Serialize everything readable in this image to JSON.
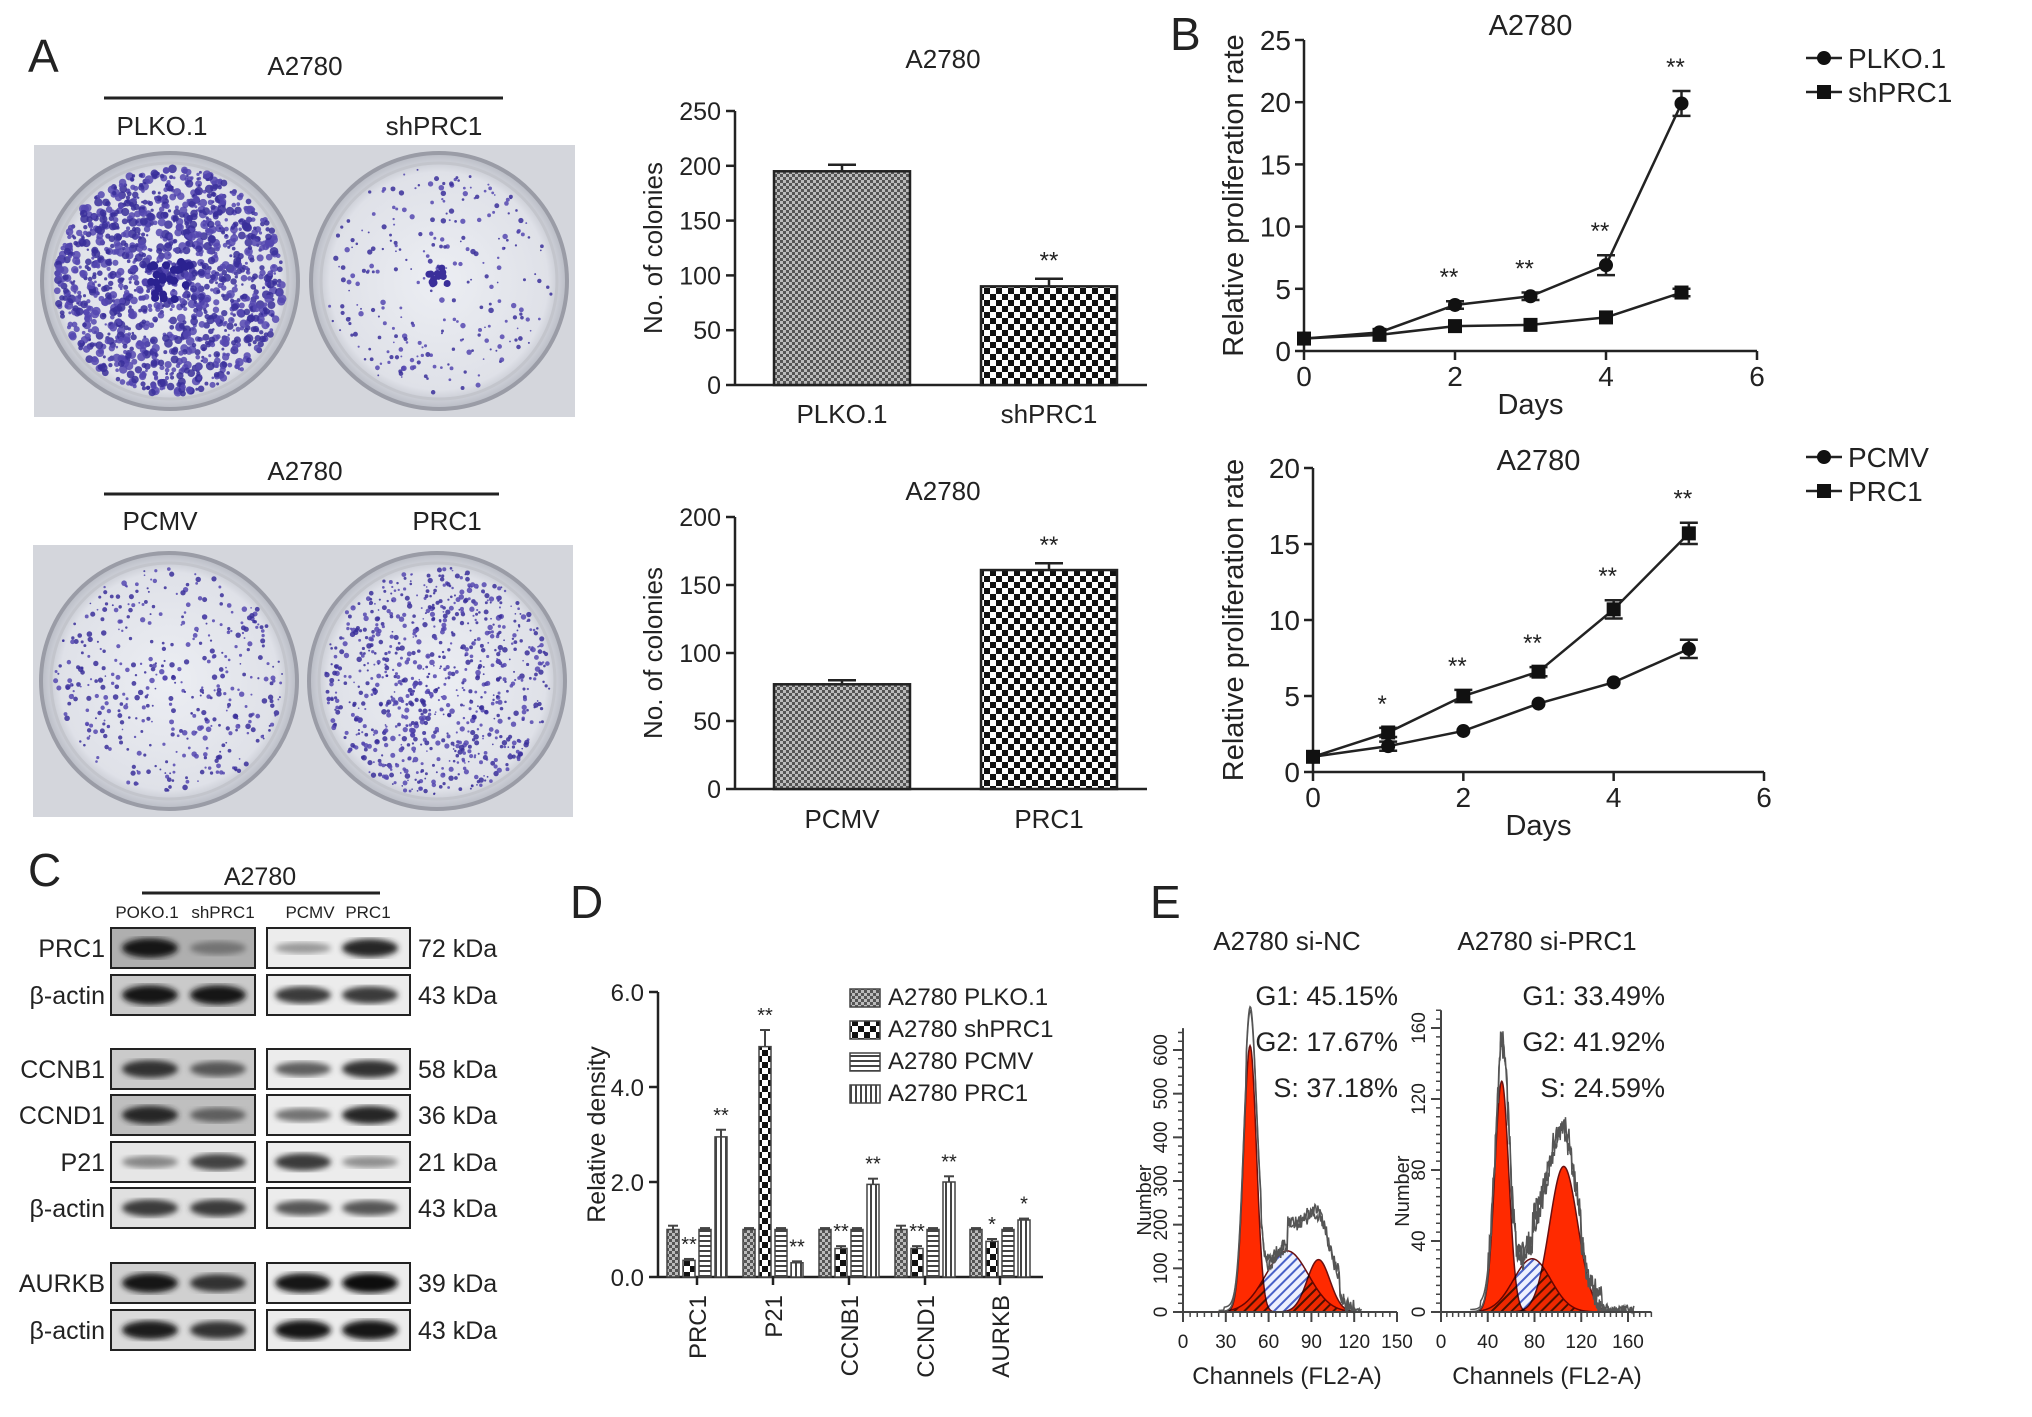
{
  "panel_labels": [
    "A",
    "B",
    "C",
    "D",
    "E"
  ],
  "colony_images": {
    "top": {
      "group": "A2780",
      "labels": [
        "PLKO.1",
        "shPRC1"
      ]
    },
    "bottom": {
      "group": "A2780",
      "labels": [
        "PCMV",
        "PRC1"
      ]
    }
  },
  "western_blot": {
    "group": "A2780",
    "lanes": [
      "POKO.1",
      "shPRC1",
      "PCMV",
      "PRC1"
    ],
    "rows": [
      {
        "label": "PRC1",
        "size": "72 kDa",
        "band_intensity": [
          0.95,
          0.45,
          0.25,
          0.85
        ],
        "left_bg": 0.55
      },
      {
        "label": "β-actin",
        "size": "43 kDa",
        "band_intensity": [
          0.95,
          0.95,
          0.75,
          0.75
        ],
        "left_bg": 0.3
      },
      {
        "label": "CCNB1",
        "size": "58 kDa",
        "band_intensity": [
          0.8,
          0.6,
          0.55,
          0.8
        ],
        "left_bg": 0.3
      },
      {
        "label": "CCND1",
        "size": "36 kDa",
        "band_intensity": [
          0.85,
          0.55,
          0.45,
          0.85
        ],
        "left_bg": 0.4
      },
      {
        "label": "P21",
        "size": "21 kDa",
        "band_intensity": [
          0.35,
          0.7,
          0.75,
          0.3
        ],
        "left_bg": 0.05
      },
      {
        "label": "β-actin",
        "size": "43 kDa",
        "band_intensity": [
          0.75,
          0.75,
          0.6,
          0.6
        ],
        "left_bg": 0.1
      },
      {
        "label": "AURKB",
        "size": "39 kDa",
        "band_intensity": [
          0.95,
          0.8,
          0.95,
          1.0
        ],
        "left_bg": 0.25
      },
      {
        "label": "β-actin",
        "size": "43 kDa",
        "band_intensity": [
          0.9,
          0.8,
          0.95,
          0.95
        ],
        "left_bg": 0.15
      }
    ]
  },
  "chart_data": [
    {
      "id": "A-top",
      "type": "bar",
      "title": "A2780",
      "xlabel": "",
      "ylabel": "No. of colonies",
      "ylim": [
        0,
        250
      ],
      "yticks": [
        0,
        50,
        100,
        150,
        200,
        250
      ],
      "categories": [
        "PLKO.1",
        "shPRC1"
      ],
      "values": [
        195,
        90
      ],
      "errors": [
        6,
        7
      ],
      "annotations": [
        "",
        "**"
      ],
      "patterns": [
        "grid",
        "checker"
      ]
    },
    {
      "id": "A-bottom",
      "type": "bar",
      "title": "A2780",
      "xlabel": "",
      "ylabel": "No. of colonies",
      "ylim": [
        0,
        200
      ],
      "yticks": [
        0,
        50,
        100,
        150,
        200
      ],
      "categories": [
        "PCMV",
        "PRC1"
      ],
      "values": [
        77,
        161
      ],
      "errors": [
        3,
        5
      ],
      "annotations": [
        "",
        "**"
      ],
      "patterns": [
        "grid",
        "checker"
      ]
    },
    {
      "id": "B-top",
      "type": "line",
      "title": "A2780",
      "xlabel": "Days",
      "ylabel": "Relative proliferation rate",
      "xlim": [
        0,
        6
      ],
      "ylim": [
        0,
        25
      ],
      "xticks": [
        0,
        2,
        4,
        6
      ],
      "yticks": [
        0,
        5,
        10,
        15,
        20,
        25
      ],
      "x": [
        0,
        1,
        2,
        3,
        4,
        5
      ],
      "series": [
        {
          "name": "PLKO.1",
          "marker": "circle",
          "values": [
            1,
            1.5,
            3.7,
            4.4,
            6.9,
            19.9
          ],
          "errors": [
            0.2,
            0.2,
            0.3,
            0.3,
            0.8,
            1.0
          ]
        },
        {
          "name": "shPRC1",
          "marker": "square",
          "values": [
            1,
            1.3,
            2.0,
            2.1,
            2.7,
            4.7
          ],
          "errors": [
            0.1,
            0.1,
            0.2,
            0.2,
            0.2,
            0.3
          ]
        }
      ],
      "annotations": [
        "",
        "",
        "**",
        "**",
        "**",
        "**"
      ],
      "legend": "top-right outside"
    },
    {
      "id": "B-bottom",
      "type": "line",
      "title": "A2780",
      "xlabel": "Days",
      "ylabel": "Relative proliferation rate",
      "xlim": [
        0,
        6
      ],
      "ylim": [
        0,
        20
      ],
      "xticks": [
        0,
        2,
        4,
        6
      ],
      "yticks": [
        0,
        5,
        10,
        15,
        20
      ],
      "x": [
        0,
        1,
        2,
        3,
        4,
        5
      ],
      "series": [
        {
          "name": "PCMV",
          "marker": "circle",
          "values": [
            1,
            1.7,
            2.7,
            4.5,
            5.9,
            8.1
          ],
          "errors": [
            0.1,
            0.3,
            0.2,
            0.2,
            0.2,
            0.6
          ]
        },
        {
          "name": "PRC1",
          "marker": "square",
          "values": [
            1,
            2.6,
            5.0,
            6.6,
            10.7,
            15.7
          ],
          "errors": [
            0.1,
            0.3,
            0.4,
            0.3,
            0.6,
            0.7
          ]
        }
      ],
      "annotations": [
        "",
        "*",
        "**",
        "**",
        "**",
        "**"
      ],
      "legend": "top-right outside"
    },
    {
      "id": "D",
      "type": "bar",
      "title": "",
      "xlabel": "",
      "ylabel": "Relative density",
      "ylim": [
        0,
        6
      ],
      "yticks": [
        "0.0",
        "2.0",
        "4.0",
        "6.0"
      ],
      "categories": [
        "PRC1",
        "P21",
        "CCNB1",
        "CCND1",
        "AURKB"
      ],
      "series": [
        {
          "name": "A2780 PLKO.1",
          "pattern": "grid",
          "values": [
            1.0,
            1.0,
            1.0,
            1.0,
            1.0
          ],
          "errors": [
            0.08,
            0.03,
            0.03,
            0.08,
            0.03
          ],
          "annotations": [
            "",
            "",
            "",
            "",
            ""
          ]
        },
        {
          "name": "A2780 shPRC1",
          "pattern": "checker",
          "values": [
            0.35,
            4.85,
            0.6,
            0.6,
            0.75
          ],
          "errors": [
            0.03,
            0.35,
            0.05,
            0.05,
            0.05
          ],
          "annotations": [
            "**",
            "**",
            "**",
            "**",
            "*"
          ]
        },
        {
          "name": "A2780 PCMV",
          "pattern": "hlines",
          "values": [
            1.0,
            1.0,
            1.0,
            1.0,
            1.0
          ],
          "errors": [
            0.03,
            0.03,
            0.03,
            0.03,
            0.03
          ],
          "annotations": [
            "",
            "",
            "",
            "",
            ""
          ]
        },
        {
          "name": "A2780 PRC1",
          "pattern": "vlines",
          "values": [
            2.95,
            0.3,
            1.95,
            2.0,
            1.2
          ],
          "errors": [
            0.15,
            0.03,
            0.12,
            0.12,
            0.03
          ],
          "annotations": [
            "**",
            "**",
            "**",
            "**",
            "*"
          ]
        }
      ],
      "legend": "top-right"
    },
    {
      "id": "E-left",
      "type": "area",
      "title": "A2780 si-NC",
      "xlabel": "Channels (FL2-A)",
      "ylabel": "Number",
      "xlim": [
        0,
        150
      ],
      "ylim": [
        0,
        650
      ],
      "xticks": [
        0,
        30,
        60,
        90,
        120,
        150
      ],
      "yticks": [
        0,
        100,
        200,
        300,
        400,
        500,
        600
      ],
      "stats": [
        "G1: 45.15%",
        "G2: 17.67%",
        "S: 37.18%"
      ],
      "components": {
        "G1": {
          "mean": 47,
          "sd": 4.5,
          "height": 610
        },
        "S": {
          "mean": 73,
          "sd": 15,
          "height": 140
        },
        "G2": {
          "mean": 95,
          "sd": 8,
          "height": 120
        }
      }
    },
    {
      "id": "E-right",
      "type": "area",
      "title": "A2780 si-PRC1",
      "xlabel": "Channels (FL2-A)",
      "ylabel": "Number",
      "xlim": [
        0,
        180
      ],
      "ylim": [
        0,
        170
      ],
      "xticks": [
        0,
        40,
        80,
        120,
        160
      ],
      "yticks": [
        0,
        40,
        80,
        120,
        160
      ],
      "stats": [
        "G1: 33.49%",
        "G2: 41.92%",
        "S: 24.59%"
      ],
      "components": {
        "G1": {
          "mean": 52,
          "sd": 6,
          "height": 130
        },
        "S": {
          "mean": 78,
          "sd": 16,
          "height": 30
        },
        "G2": {
          "mean": 105,
          "sd": 12,
          "height": 82
        }
      }
    }
  ]
}
